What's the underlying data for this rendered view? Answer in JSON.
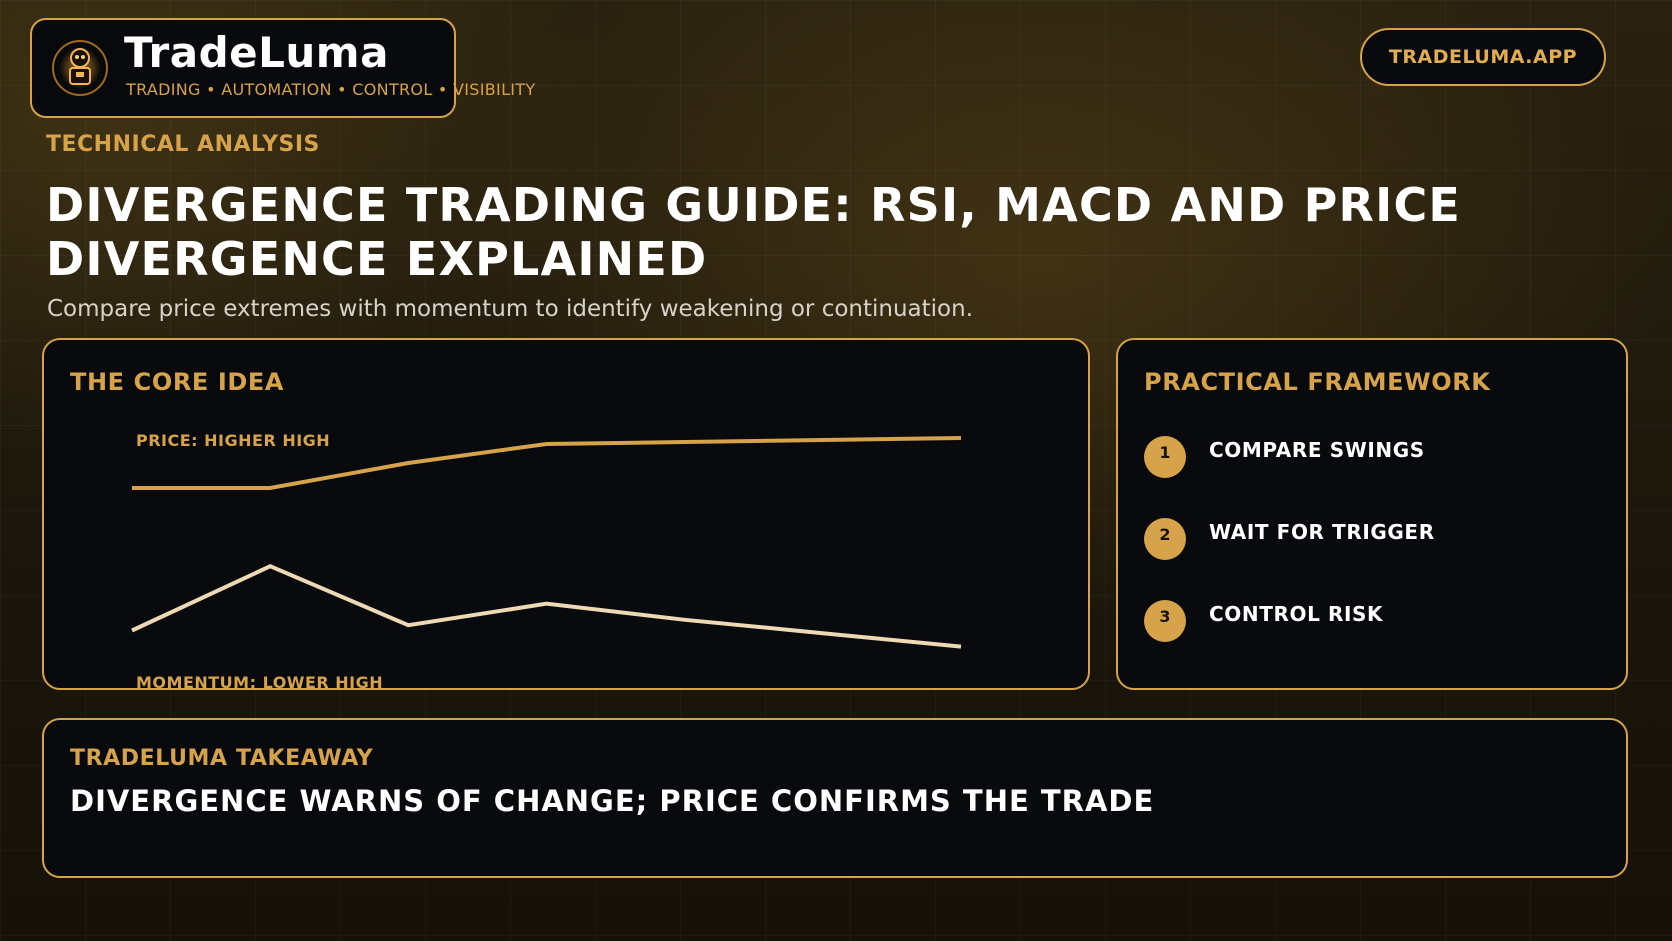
{
  "brand": {
    "name": "TradeLuma",
    "tagline": "TRADING • AUTOMATION • CONTROL • VISIBILITY"
  },
  "header": {
    "url_label": "TRADELUMA.APP",
    "eyebrow": "TECHNICAL ANALYSIS",
    "title": "DIVERGENCE TRADING GUIDE: RSI, MACD AND PRICE DIVERGENCE EXPLAINED",
    "subtitle": "Compare price extremes with momentum to identify weakening or continuation."
  },
  "core_card": {
    "title": "THE CORE IDEA"
  },
  "chart_data": {
    "type": "line",
    "title": "",
    "x": [
      0,
      1,
      2,
      3,
      4,
      5,
      6
    ],
    "series": [
      {
        "name": "PRICE: HIGHER HIGH",
        "values": [
          0.2,
          0.2,
          0.45,
          0.64,
          0.66,
          0.68,
          0.7
        ],
        "color": "#d6a24a"
      },
      {
        "name": "MOMENTUM: LOWER HIGH",
        "values": [
          0.22,
          0.7,
          0.26,
          0.42,
          0.3,
          0.2,
          0.1
        ],
        "color": "#eed9b3"
      }
    ],
    "grid": false,
    "legend": "inline"
  },
  "framework": {
    "title": "PRACTICAL FRAMEWORK",
    "steps": [
      {
        "num": "1",
        "label": "COMPARE SWINGS"
      },
      {
        "num": "2",
        "label": "WAIT FOR TRIGGER"
      },
      {
        "num": "3",
        "label": "CONTROL RISK"
      }
    ]
  },
  "takeaway": {
    "heading": "TRADELUMA TAKEAWAY",
    "text": "DIVERGENCE WARNS OF CHANGE; PRICE CONFIRMS THE TRADE"
  },
  "colors": {
    "accent": "#d6a24a",
    "card_bg": "#080a0e",
    "momentum_line": "#eed9b3"
  }
}
